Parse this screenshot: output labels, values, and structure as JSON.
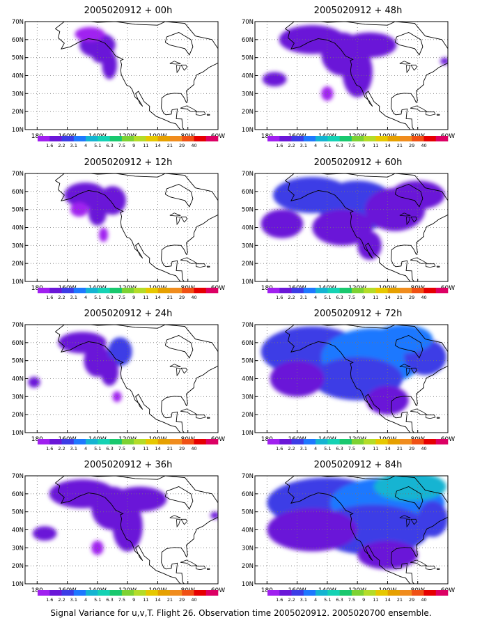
{
  "colors": {
    "scale": [
      "#a020f0",
      "#6a17d8",
      "#3c3ce6",
      "#1e78ff",
      "#14b4d2",
      "#14d2b4",
      "#19c86e",
      "#7dd232",
      "#b4dc28",
      "#e6c800",
      "#e6a000",
      "#f08c1e",
      "#f05014",
      "#e60000",
      "#dc0064"
    ]
  },
  "colorbar_labels": [
    "1.6",
    "2.2",
    "3.1",
    "4",
    "5.1",
    "6.3",
    "7.5",
    "9",
    "11",
    "14",
    "21",
    "29",
    "40"
  ],
  "axes": {
    "x_ticks": [
      "180",
      "160W",
      "140W",
      "120W",
      "100W",
      "80W",
      "60W"
    ],
    "y_ticks": [
      "10N",
      "20N",
      "30N",
      "40N",
      "50N",
      "60N",
      "70N"
    ]
  },
  "panels": [
    {
      "title": "2005020912 + 00h",
      "level": 0
    },
    {
      "title": "2005020912 + 12h",
      "level": 1
    },
    {
      "title": "2005020912 + 24h",
      "level": 2
    },
    {
      "title": "2005020912 + 36h",
      "level": 3
    },
    {
      "title": "2005020912 + 48h",
      "level": 3
    },
    {
      "title": "2005020912 + 60h",
      "level": 4
    },
    {
      "title": "2005020912 + 72h",
      "level": 5
    },
    {
      "title": "2005020912 + 84h",
      "level": 6
    }
  ],
  "footer": "Signal Variance for u,v,T. Flight 26. Observation time 2005020912. 2005020700 ensemble."
}
